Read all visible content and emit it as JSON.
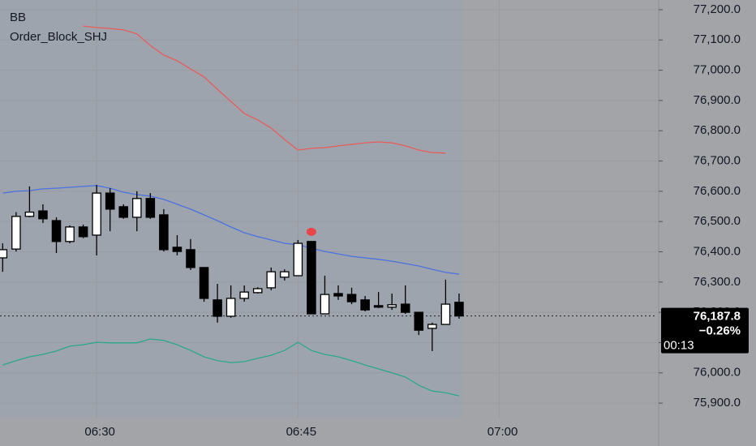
{
  "chart_data": {
    "type": "candlestick",
    "legend": [
      "BB",
      "Order_Block_SHJ"
    ],
    "x": [
      23,
      24,
      25,
      26,
      27,
      28,
      29,
      30,
      31,
      32,
      33,
      34,
      35,
      36,
      37,
      38,
      39,
      40,
      41,
      42,
      43,
      44,
      45,
      46,
      47,
      48,
      49,
      50,
      51,
      52,
      53,
      54,
      55,
      56,
      57
    ],
    "open": [
      76380,
      76409,
      76517,
      76535,
      76503,
      76434,
      76482,
      76455,
      76594,
      76549,
      76514,
      76576,
      76522,
      76415,
      76407,
      76348,
      76241,
      76187,
      76246,
      76265,
      76281,
      76316,
      76321,
      76434,
      76195,
      76262,
      76259,
      76241,
      76222,
      76217,
      76227,
      76200,
      76147,
      76160,
      76233
    ],
    "high": [
      76428,
      76531,
      76616,
      76557,
      76514,
      76487,
      76490,
      76621,
      76610,
      76557,
      76600,
      76594,
      76541,
      76455,
      76442,
      76348,
      76294,
      76289,
      76289,
      76283,
      76348,
      76342,
      76439,
      76434,
      76321,
      76289,
      76281,
      76254,
      76267,
      76262,
      76289,
      76200,
      76166,
      76308,
      76262
    ],
    "low": [
      76334,
      76401,
      76514,
      76495,
      76396,
      76428,
      76445,
      76388,
      76468,
      76509,
      76468,
      76509,
      76401,
      76388,
      76340,
      76235,
      76166,
      76182,
      76235,
      76262,
      76273,
      76305,
      76321,
      76195,
      76195,
      76241,
      76227,
      76203,
      76214,
      76208,
      76195,
      76125,
      76072,
      76160,
      76179
    ],
    "close": [
      76407,
      76517,
      76531,
      76509,
      76434,
      76482,
      76450,
      76594,
      76541,
      76514,
      76576,
      76514,
      76407,
      76401,
      76348,
      76246,
      76187,
      76246,
      76267,
      76278,
      76334,
      76334,
      76428,
      76195,
      76259,
      76254,
      76235,
      76208,
      76217,
      76225,
      76200,
      76141,
      76160,
      76227,
      76188
    ],
    "up_color": "#ffffff",
    "down_color": "#000000",
    "lines": [
      {
        "color": "#e85c5c",
        "values": [
          null,
          null,
          null,
          null,
          null,
          null,
          77146,
          77141,
          77138,
          77133,
          77120,
          77082,
          77050,
          77031,
          77004,
          76978,
          76937,
          76897,
          76857,
          76836,
          76809,
          76771,
          76736,
          76742,
          76744,
          76750,
          76755,
          76760,
          76763,
          76760,
          76750,
          76736,
          76728,
          76726,
          null
        ]
      },
      {
        "color": "#4a72e0",
        "values": [
          76594,
          76600,
          76602,
          76608,
          76610,
          76613,
          76616,
          76619,
          76610,
          76597,
          76589,
          76584,
          76573,
          76557,
          76541,
          76522,
          76503,
          76482,
          76463,
          76450,
          76439,
          76428,
          76423,
          76412,
          76401,
          76393,
          76385,
          76380,
          76375,
          76369,
          76361,
          76353,
          76342,
          76332,
          76326
        ]
      },
      {
        "color": "#2aa889",
        "values": [
          76026,
          76040,
          76053,
          76061,
          76072,
          76088,
          76093,
          76101,
          76099,
          76099,
          76099,
          76112,
          76107,
          76093,
          76074,
          76053,
          76040,
          76034,
          76037,
          76048,
          76058,
          76074,
          76101,
          76074,
          76061,
          76053,
          76040,
          76026,
          76013,
          76000,
          75986,
          75959,
          75940,
          75934,
          75924
        ]
      }
    ],
    "signal": {
      "x": 46,
      "value": 76466,
      "color": "#e8454a"
    },
    "last_price": {
      "value": 76187.8,
      "label": "76,187.8"
    },
    "change": "−0.26%",
    "countdown": "00:13",
    "xlim": [
      22.8,
      71.75
    ],
    "xticks": [
      {
        "value": 30,
        "label": "06:30"
      },
      {
        "value": 45,
        "label": "06:45"
      },
      {
        "value": 60,
        "label": "07:00"
      }
    ],
    "ylim": [
      75852,
      77232
    ],
    "yticks": [
      {
        "value": 75900,
        "label": "75,900.0"
      },
      {
        "value": 76000,
        "label": "76,000.0"
      },
      {
        "value": 76100,
        "label": "76,100.0"
      },
      {
        "value": 76200,
        "label": "76,200.0"
      },
      {
        "value": 76300,
        "label": "76,300.0"
      },
      {
        "value": 76400,
        "label": "76,400.0"
      },
      {
        "value": 76500,
        "label": "76,500.0"
      },
      {
        "value": 76600,
        "label": "76,600.0"
      },
      {
        "value": 76700,
        "label": "76,700.0"
      },
      {
        "value": 76800,
        "label": "76,800.0"
      },
      {
        "value": 76900,
        "label": "76,900.0"
      },
      {
        "value": 77000,
        "label": "77,000.0"
      },
      {
        "value": 77100,
        "label": "77,100.0"
      },
      {
        "value": 77200,
        "label": "77,200.0"
      }
    ],
    "grid": true
  }
}
